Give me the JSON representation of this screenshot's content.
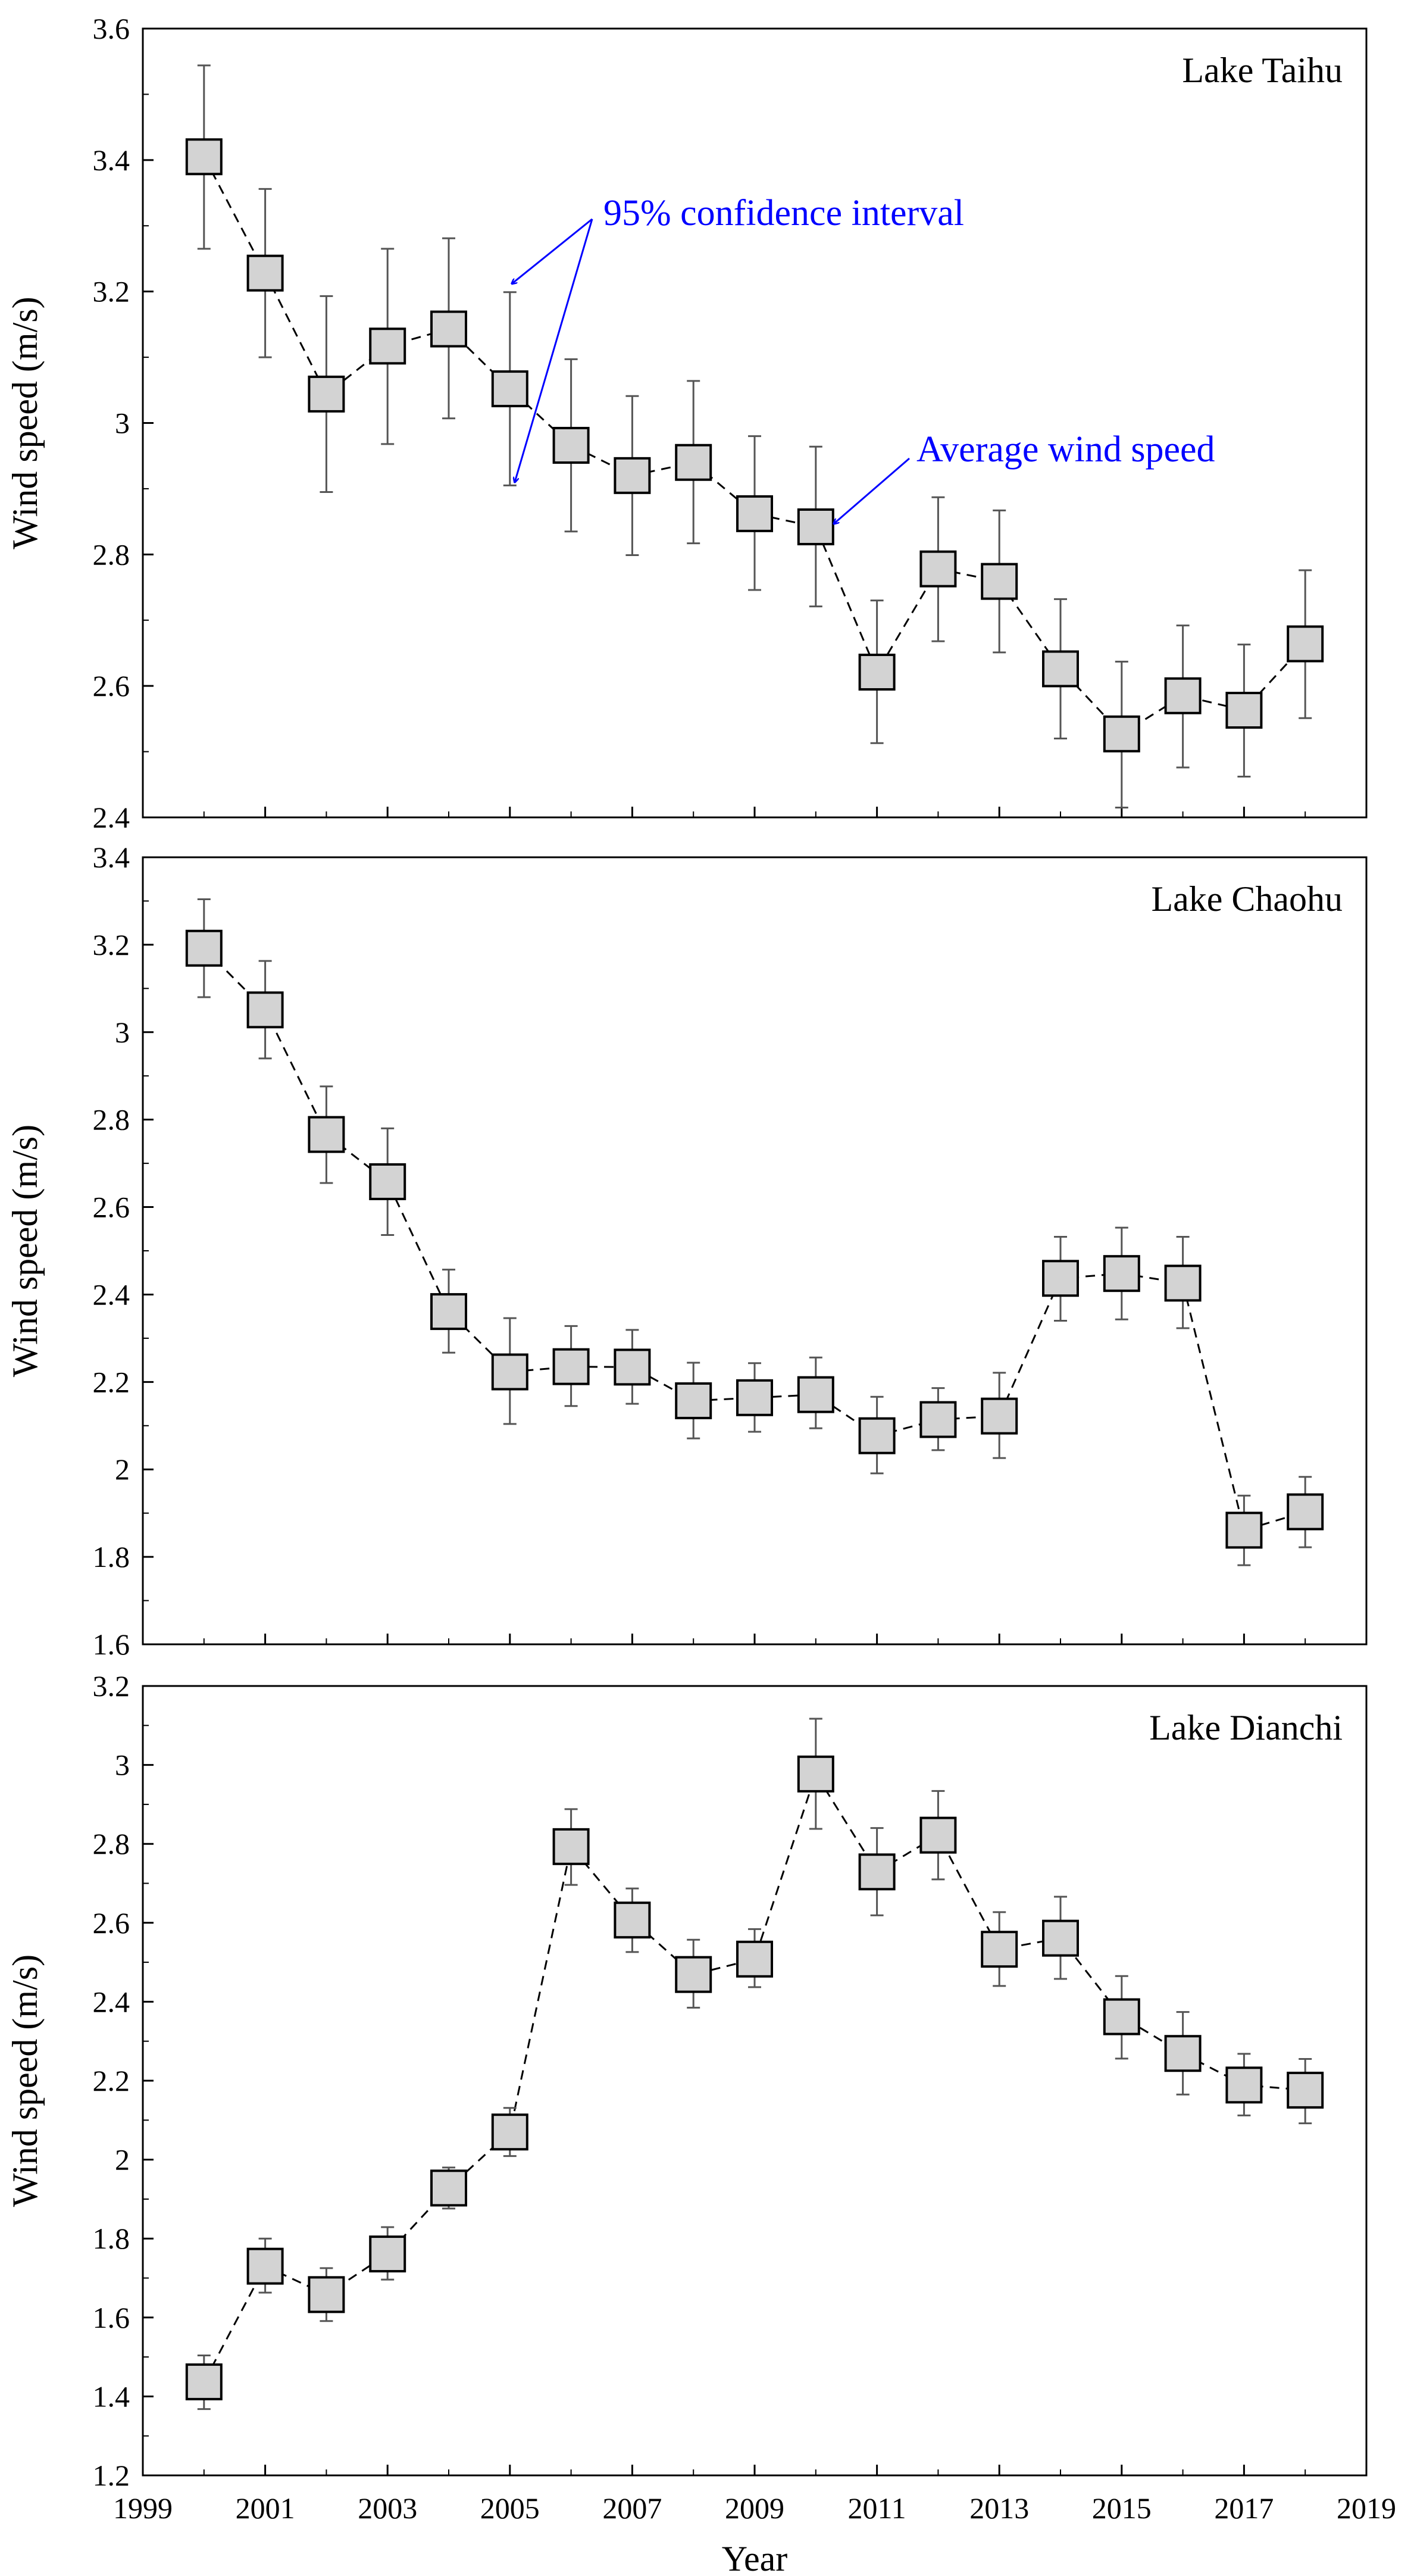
{
  "colors": {
    "axis": "#000000",
    "marker_fill": "#d3d3d3",
    "marker_stroke": "#000000",
    "errorbar": "#555555",
    "annotation": "#0000ff"
  },
  "x_axis": {
    "label": "Year",
    "ticks": [
      "1999",
      "2001",
      "2003",
      "2005",
      "2007",
      "2009",
      "2011",
      "2013",
      "2015",
      "2017",
      "2019"
    ]
  },
  "annotations": {
    "ci_label": "95% confidence interval",
    "avg_label": "Average wind speed"
  },
  "chart_data": [
    {
      "type": "scatter",
      "title": "Lake Taihu",
      "xlabel": "",
      "ylabel": "Wind speed (m/s)",
      "xlim": [
        1999,
        2019
      ],
      "ylim": [
        2.4,
        3.6
      ],
      "yticks": [
        "2.4",
        "2.6",
        "2.8",
        "3",
        "3.2",
        "3.4",
        "3.6"
      ],
      "x": [
        2000,
        2001,
        2002,
        2003,
        2004,
        2005,
        2006,
        2007,
        2008,
        2009,
        2010,
        2011,
        2012,
        2013,
        2014,
        2015,
        2016,
        2017,
        2018
      ],
      "series": [
        {
          "name": "Average wind speed",
          "values": [
            3.405,
            3.228,
            3.044,
            3.117,
            3.143,
            3.052,
            2.966,
            2.92,
            2.94,
            2.862,
            2.842,
            2.621,
            2.778,
            2.759,
            2.626,
            2.527,
            2.585,
            2.563,
            2.664
          ],
          "ci_low": [
            3.265,
            3.1,
            2.895,
            2.968,
            3.007,
            2.905,
            2.835,
            2.799,
            2.817,
            2.746,
            2.721,
            2.513,
            2.668,
            2.651,
            2.52,
            2.415,
            2.476,
            2.462,
            2.551
          ],
          "ci_high": [
            3.544,
            3.356,
            3.193,
            3.265,
            3.281,
            3.199,
            3.097,
            3.041,
            3.064,
            2.98,
            2.964,
            2.73,
            2.887,
            2.867,
            2.732,
            2.637,
            2.692,
            2.663,
            2.776
          ]
        }
      ]
    },
    {
      "type": "scatter",
      "title": "Lake Chaohu",
      "xlabel": "",
      "ylabel": "Wind speed (m/s)",
      "xlim": [
        1999,
        2019
      ],
      "ylim": [
        1.6,
        3.4
      ],
      "yticks": [
        "1.6",
        "1.8",
        "2",
        "2.2",
        "2.4",
        "2.6",
        "2.8",
        "3",
        "3.2",
        "3.4"
      ],
      "x": [
        2000,
        2001,
        2002,
        2003,
        2004,
        2005,
        2006,
        2007,
        2008,
        2009,
        2010,
        2011,
        2012,
        2013,
        2014,
        2015,
        2016,
        2017,
        2018
      ],
      "series": [
        {
          "name": "Average wind speed",
          "values": [
            3.192,
            3.051,
            2.766,
            2.658,
            2.361,
            2.223,
            2.235,
            2.234,
            2.157,
            2.164,
            2.171,
            2.077,
            2.114,
            2.122,
            2.437,
            2.448,
            2.426,
            1.861,
            1.903
          ],
          "ci_low": [
            3.08,
            2.94,
            2.655,
            2.536,
            2.267,
            2.104,
            2.145,
            2.15,
            2.071,
            2.086,
            2.094,
            1.991,
            2.044,
            2.026,
            2.34,
            2.343,
            2.323,
            1.781,
            1.822
          ],
          "ci_high": [
            3.304,
            3.163,
            2.876,
            2.78,
            2.457,
            2.346,
            2.328,
            2.319,
            2.244,
            2.243,
            2.256,
            2.166,
            2.186,
            2.221,
            2.532,
            2.553,
            2.532,
            1.94,
            1.983
          ]
        }
      ]
    },
    {
      "type": "scatter",
      "title": "Lake Dianchi",
      "xlabel": "Year",
      "ylabel": "Wind speed (m/s)",
      "xlim": [
        1999,
        2019
      ],
      "ylim": [
        1.2,
        3.2
      ],
      "yticks": [
        "1.2",
        "1.4",
        "1.6",
        "1.8",
        "2",
        "2.2",
        "2.4",
        "2.6",
        "2.8",
        "3",
        "3.2"
      ],
      "x": [
        2000,
        2001,
        2002,
        2003,
        2004,
        2005,
        2006,
        2007,
        2008,
        2009,
        2010,
        2011,
        2012,
        2013,
        2014,
        2015,
        2016,
        2017,
        2018
      ],
      "series": [
        {
          "name": "Average wind speed",
          "values": [
            1.437,
            1.73,
            1.658,
            1.761,
            1.928,
            2.07,
            2.793,
            2.607,
            2.469,
            2.508,
            2.977,
            2.729,
            2.822,
            2.533,
            2.561,
            2.362,
            2.269,
            2.189,
            2.176
          ],
          "ci_low": [
            1.368,
            1.663,
            1.591,
            1.696,
            1.876,
            2.009,
            2.696,
            2.526,
            2.385,
            2.437,
            2.838,
            2.619,
            2.71,
            2.44,
            2.458,
            2.256,
            2.165,
            2.112,
            2.092
          ],
          "ci_high": [
            1.504,
            1.8,
            1.725,
            1.829,
            1.98,
            2.131,
            2.888,
            2.687,
            2.557,
            2.584,
            3.117,
            2.84,
            2.934,
            2.627,
            2.666,
            2.465,
            2.374,
            2.268,
            2.255
          ]
        }
      ]
    }
  ]
}
